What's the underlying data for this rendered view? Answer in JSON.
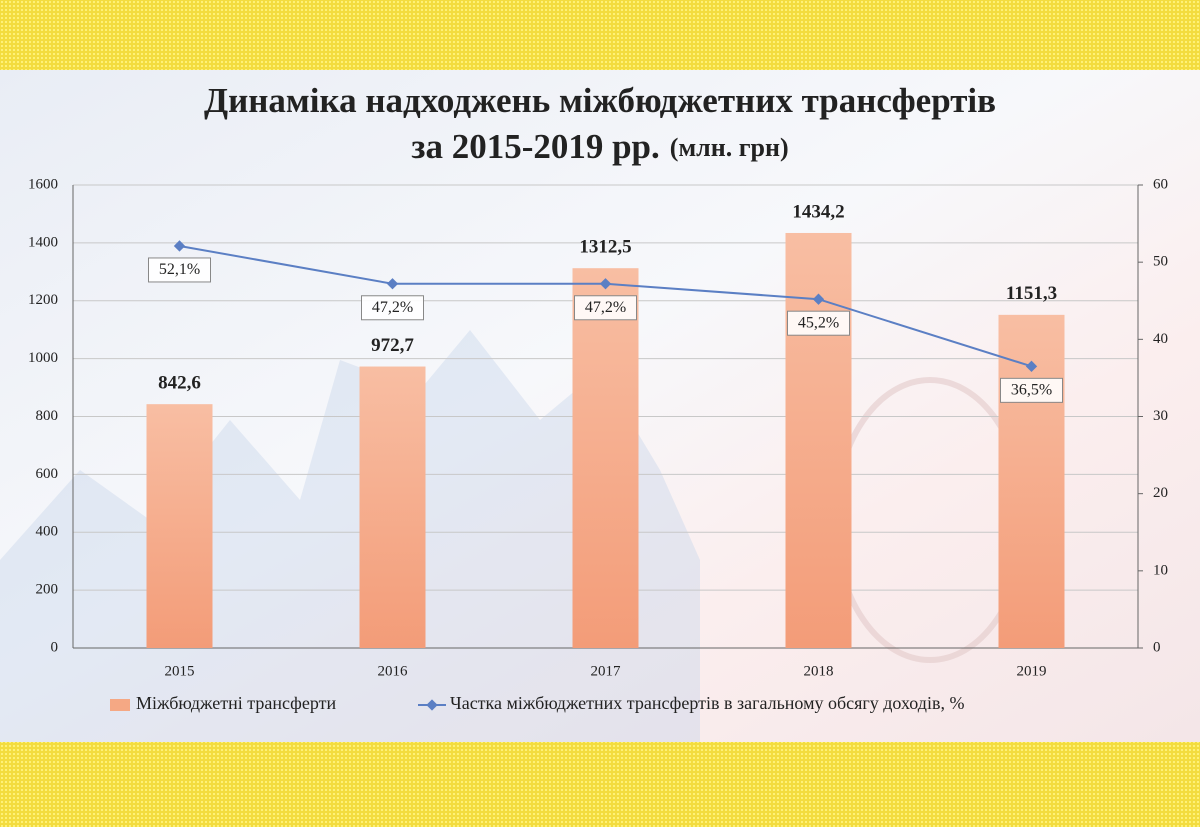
{
  "chart_data": {
    "type": "combo",
    "title": "Динаміка надходжень міжбюджетних трансфертів",
    "subtitle": "за 2015-2019 рр.",
    "unit_note": "(млн. грн)",
    "categories": [
      "2015",
      "2016",
      "2017",
      "2018",
      "2019"
    ],
    "series": [
      {
        "name": "Міжбюджетні трансферти",
        "type": "bar",
        "color": "#f5a884",
        "values": [
          842.6,
          972.7,
          1312.5,
          1434.2,
          1151.3
        ],
        "value_labels": [
          "842,6",
          "972,7",
          "1312,5",
          "1434,2",
          "1151,3"
        ]
      },
      {
        "name": "Частка міжбюджетних трансфертів в загальному обсягу доходів, %",
        "type": "line",
        "color": "#5b7fc4",
        "axis": "y2",
        "values": [
          52.1,
          47.2,
          47.2,
          45.2,
          36.5
        ],
        "value_labels": [
          "52,1%",
          "47,2%",
          "47,2%",
          "45,2%",
          "36,5%"
        ]
      }
    ],
    "ylim": [
      0,
      1600
    ],
    "yticks": [
      0,
      200,
      400,
      600,
      800,
      1000,
      1200,
      1400,
      1600
    ],
    "y2lim": [
      0,
      60
    ],
    "y2ticks": [
      0,
      10,
      20,
      30,
      40,
      50,
      60
    ],
    "grid": true,
    "legend": "bottom"
  }
}
